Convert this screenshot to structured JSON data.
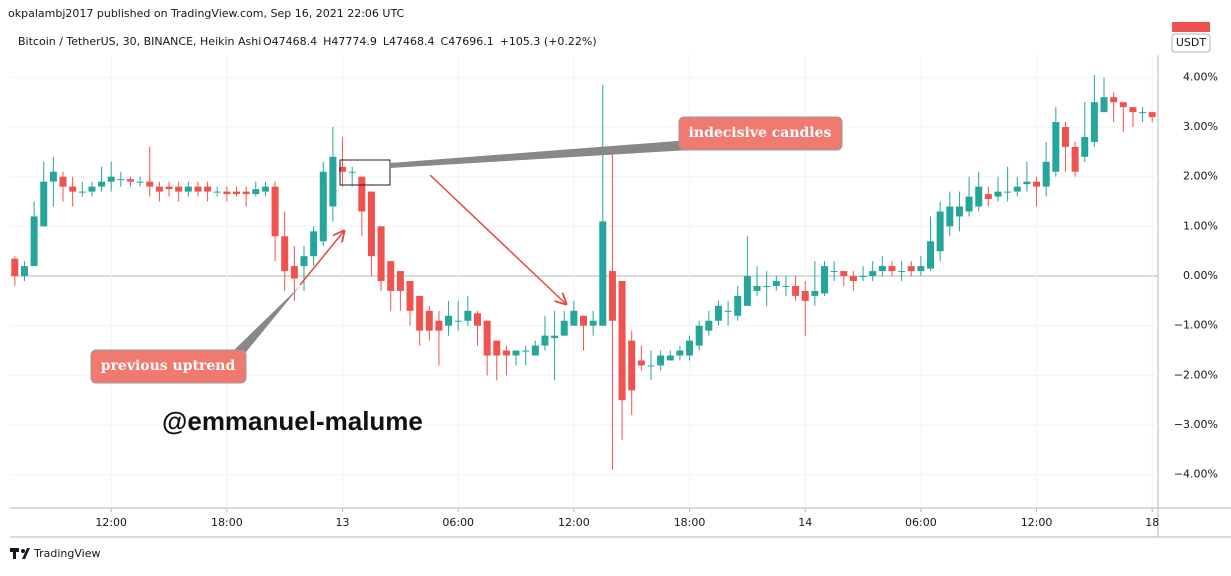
{
  "header": {
    "publisher": "okpalambj2017 published on TradingView.com, Sep 16, 2021 22:06 UTC",
    "symbol": "Bitcoin / TetherUS, 30, BINANCE, Heikin Ashi",
    "ohlc": [
      "O47468.4",
      "H47774.9",
      "L47468.4",
      "C47696.1",
      "+105.3 (+0.22%)"
    ],
    "currency": "USDT"
  },
  "watermark": "@emmanuel-malume",
  "footer": "TradingView",
  "chart_data": {
    "type": "candlestick",
    "annotations": [
      "indecisive candles",
      "previous uptrend"
    ],
    "up_color": "#26a69a",
    "down_color": "#ef5350",
    "grid": true,
    "xlim": [
      6.75,
      66.3
    ],
    "xticks": [
      {
        "value": 12,
        "label": "12:00"
      },
      {
        "value": 18,
        "label": "18:00"
      },
      {
        "value": 24,
        "label": "13"
      },
      {
        "value": 30,
        "label": "06:00"
      },
      {
        "value": 36,
        "label": "12:00"
      },
      {
        "value": 42,
        "label": "18:00"
      },
      {
        "value": 48,
        "label": "14"
      },
      {
        "value": 54,
        "label": "06:00"
      },
      {
        "value": 60,
        "label": "12:00"
      },
      {
        "value": 66,
        "label": "18"
      }
    ],
    "ylim": [
      -4.67,
      4.45
    ],
    "yticks": [
      {
        "value": 4,
        "label": "4.00%"
      },
      {
        "value": 3,
        "label": "3.00%"
      },
      {
        "value": 2,
        "label": "2.00%"
      },
      {
        "value": 1,
        "label": "1.00%"
      },
      {
        "value": 0,
        "label": "0.00%"
      },
      {
        "value": -1,
        "label": "−1.00%"
      },
      {
        "value": -2,
        "label": "−2.00%"
      },
      {
        "value": -3,
        "label": "−3.00%"
      },
      {
        "value": -4,
        "label": "−4.00%"
      }
    ],
    "x": [
      7,
      7.5,
      8,
      8.5,
      9,
      9.5,
      10,
      10.5,
      11,
      11.5,
      12,
      12.5,
      13,
      13.5,
      14,
      14.5,
      15,
      15.5,
      16,
      16.5,
      17,
      17.5,
      18,
      18.5,
      19,
      19.5,
      20,
      20.5,
      21,
      21.5,
      22,
      22.5,
      23,
      23.5,
      24,
      24.5,
      25,
      25.5,
      26,
      26.5,
      27,
      27.5,
      28,
      28.5,
      29,
      29.5,
      30,
      30.5,
      31,
      31.5,
      32,
      32.5,
      33,
      33.5,
      34,
      34.5,
      35,
      35.5,
      36,
      36.5,
      37,
      37.5,
      38,
      38.5,
      39,
      39.5,
      40,
      40.5,
      41,
      41.5,
      42,
      42.5,
      43,
      43.5,
      44,
      44.5,
      45,
      45.5,
      46,
      46.5,
      47,
      47.5,
      48,
      48.5,
      49,
      49.5,
      50,
      50.5,
      51,
      51.5,
      52,
      52.5,
      53,
      53.5,
      54,
      54.5,
      55,
      55.5,
      56,
      56.5,
      57,
      57.5,
      58,
      58.5,
      59,
      59.5,
      60,
      60.5,
      61,
      61.5,
      62,
      62.5,
      63,
      63.5,
      64,
      64.5,
      65,
      65.5,
      66
    ],
    "open": [
      0.35,
      0.0,
      0.2,
      1.0,
      1.9,
      2.0,
      1.8,
      1.7,
      1.7,
      1.8,
      1.9,
      1.95,
      1.95,
      1.9,
      1.9,
      1.8,
      1.8,
      1.8,
      1.7,
      1.8,
      1.8,
      1.7,
      1.7,
      1.7,
      1.7,
      1.65,
      1.7,
      1.8,
      0.8,
      0.2,
      0.2,
      0.4,
      0.7,
      1.4,
      2.2,
      2.1,
      2.0,
      1.7,
      1.0,
      0.3,
      0.1,
      -0.1,
      -0.4,
      -0.7,
      -0.9,
      -1.0,
      -0.9,
      -0.9,
      -0.75,
      -0.9,
      -1.3,
      -1.5,
      -1.6,
      -1.5,
      -1.6,
      -1.4,
      -1.25,
      -1.2,
      -1.0,
      -0.8,
      -1.0,
      -1.0,
      0.1,
      -0.1,
      -1.3,
      -1.7,
      -1.8,
      -1.8,
      -1.7,
      -1.6,
      -1.6,
      -1.4,
      -1.1,
      -0.9,
      -0.7,
      -0.8,
      -0.6,
      -0.3,
      -0.2,
      -0.2,
      -0.2,
      -0.2,
      -0.3,
      -0.4,
      -0.35,
      0.1,
      0.1,
      0.0,
      0.0,
      0.0,
      0.1,
      0.2,
      0.1,
      0.2,
      0.1,
      0.15,
      0.5,
      1.0,
      1.2,
      1.3,
      1.4,
      1.65,
      1.6,
      1.7,
      1.7,
      1.85,
      1.9,
      1.8,
      2.1,
      3.0,
      2.6,
      2.4,
      2.7,
      3.3,
      3.6,
      3.5,
      3.4,
      3.3,
      3.3
    ],
    "high": [
      0.4,
      0.3,
      1.5,
      2.3,
      2.4,
      2.1,
      2.0,
      1.9,
      1.9,
      2.2,
      2.3,
      2.1,
      2.0,
      2.0,
      2.6,
      1.9,
      1.9,
      1.9,
      1.9,
      1.9,
      1.9,
      1.8,
      1.8,
      1.8,
      1.8,
      1.9,
      1.9,
      1.9,
      1.3,
      0.6,
      0.6,
      1.0,
      2.3,
      3.0,
      2.8,
      2.2,
      2.0,
      1.7,
      1.0,
      0.3,
      0.1,
      -0.1,
      -0.4,
      -0.6,
      -0.7,
      -0.5,
      -0.5,
      -0.4,
      -0.7,
      -0.9,
      -1.3,
      -1.4,
      -1.5,
      -1.4,
      -1.3,
      -0.8,
      -0.7,
      -0.7,
      -0.5,
      -0.8,
      -0.7,
      3.85,
      2.6,
      -0.1,
      -1.1,
      -1.4,
      -1.5,
      -1.5,
      -1.5,
      -1.4,
      -1.2,
      -0.9,
      -0.7,
      -0.5,
      -0.5,
      -0.2,
      0.8,
      0.2,
      0.1,
      0.0,
      0.0,
      0.0,
      -0.1,
      0.3,
      0.3,
      0.3,
      0.1,
      0.1,
      0.2,
      0.3,
      0.4,
      0.3,
      0.3,
      0.3,
      0.4,
      1.2,
      1.5,
      1.7,
      1.7,
      2.0,
      2.1,
      1.8,
      2.0,
      2.2,
      2.0,
      2.3,
      2.0,
      2.7,
      3.4,
      3.1,
      2.7,
      3.5,
      4.05,
      4.0,
      3.7,
      3.5,
      3.4,
      3.4,
      3.3
    ],
    "low": [
      -0.2,
      -0.1,
      0.2,
      1.0,
      1.4,
      1.5,
      1.4,
      1.6,
      1.6,
      1.7,
      1.7,
      1.8,
      1.8,
      1.8,
      1.6,
      1.5,
      1.6,
      1.5,
      1.6,
      1.6,
      1.5,
      1.6,
      1.5,
      1.6,
      1.4,
      1.6,
      1.6,
      0.3,
      -0.3,
      -0.5,
      -0.3,
      0.2,
      0.6,
      1.1,
      1.8,
      1.8,
      0.8,
      0.0,
      -0.3,
      -0.7,
      -0.7,
      -1.0,
      -1.4,
      -1.3,
      -1.8,
      -1.2,
      -1.1,
      -1.0,
      -1.4,
      -2.0,
      -2.1,
      -2.0,
      -1.8,
      -1.8,
      -1.6,
      -1.5,
      -2.1,
      -1.2,
      -1.0,
      -1.5,
      -1.2,
      -1.0,
      -3.9,
      -3.3,
      -2.8,
      -1.9,
      -2.1,
      -1.9,
      -1.7,
      -1.7,
      -1.7,
      -1.5,
      -1.2,
      -1.0,
      -1.0,
      -0.9,
      -0.6,
      -0.4,
      -0.6,
      -0.3,
      -0.4,
      -0.5,
      -1.2,
      -0.6,
      -0.4,
      -0.1,
      -0.2,
      -0.3,
      -0.1,
      -0.1,
      0.0,
      0.0,
      -0.1,
      0.0,
      0.0,
      0.1,
      0.3,
      0.8,
      0.9,
      1.2,
      1.3,
      1.4,
      1.5,
      1.5,
      1.6,
      1.7,
      1.4,
      1.6,
      2.0,
      2.1,
      2.0,
      2.3,
      2.6,
      3.3,
      3.1,
      2.9,
      3.0,
      3.1,
      3.1
    ],
    "close": [
      0.0,
      0.2,
      1.2,
      1.9,
      2.1,
      1.8,
      1.7,
      1.7,
      1.8,
      1.9,
      2.0,
      1.95,
      1.9,
      1.9,
      1.8,
      1.7,
      1.75,
      1.7,
      1.8,
      1.7,
      1.7,
      1.7,
      1.65,
      1.65,
      1.65,
      1.75,
      1.8,
      0.8,
      0.1,
      -0.05,
      0.4,
      0.9,
      2.1,
      2.4,
      2.1,
      2.1,
      1.3,
      0.4,
      -0.1,
      -0.3,
      -0.3,
      -0.7,
      -1.1,
      -1.1,
      -1.1,
      -0.8,
      -0.9,
      -0.7,
      -1.0,
      -1.6,
      -1.6,
      -1.6,
      -1.5,
      -1.5,
      -1.4,
      -1.2,
      -1.2,
      -0.9,
      -0.7,
      -1.0,
      -0.9,
      1.1,
      -0.9,
      -2.5,
      -2.3,
      -1.8,
      -1.8,
      -1.6,
      -1.6,
      -1.5,
      -1.3,
      -1.0,
      -0.9,
      -0.6,
      -0.7,
      -0.4,
      0.0,
      -0.2,
      -0.2,
      -0.1,
      -0.2,
      -0.4,
      -0.5,
      -0.3,
      0.2,
      0.1,
      0.0,
      -0.1,
      0.0,
      0.1,
      0.2,
      0.1,
      0.1,
      0.1,
      0.2,
      0.7,
      1.3,
      1.4,
      1.4,
      1.6,
      1.8,
      1.55,
      1.7,
      1.7,
      1.8,
      1.9,
      1.8,
      2.3,
      3.1,
      2.6,
      2.1,
      2.8,
      3.5,
      3.6,
      3.5,
      3.4,
      3.3,
      3.3,
      3.2
    ]
  }
}
